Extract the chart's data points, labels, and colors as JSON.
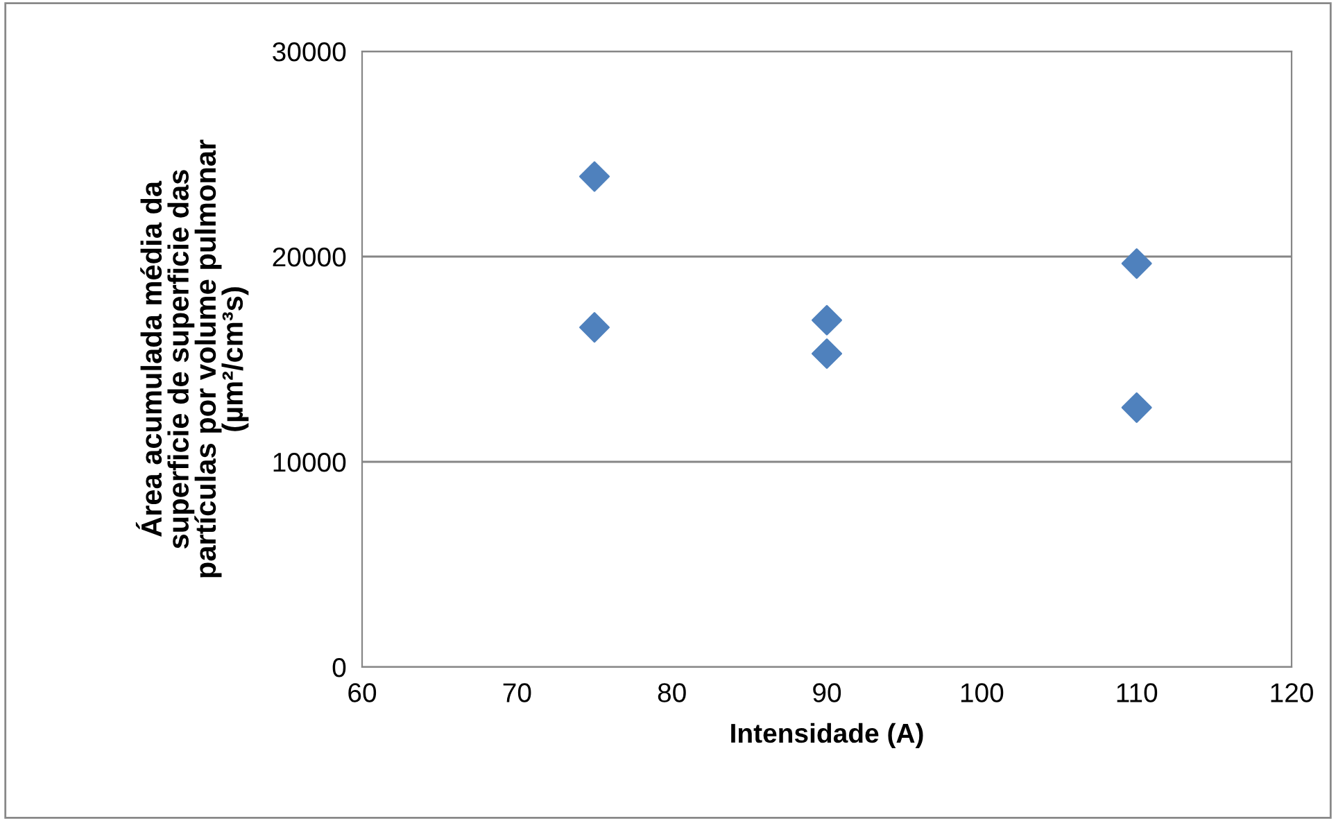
{
  "chart_data": {
    "type": "scatter",
    "xlabel": "Intensidade (A)",
    "ylabel": "Área acumulada média da\nsuperficie de superficie das\npartículas por volume pulmonar\n(µm²/cm³s)",
    "x": [
      75,
      75,
      90,
      90,
      110,
      110
    ],
    "series": [
      {
        "color": "#4f81bd",
        "values": [
          23900,
          16550,
          16900,
          15270,
          19660,
          12640
        ]
      }
    ],
    "xlim": [
      60,
      120
    ],
    "xticks": [
      60,
      70,
      80,
      90,
      100,
      110,
      120
    ],
    "ylim": [
      0,
      30000
    ],
    "yticks": [
      0,
      10000,
      20000,
      30000
    ],
    "grid": "y",
    "marker": "diamond",
    "legend": false
  }
}
